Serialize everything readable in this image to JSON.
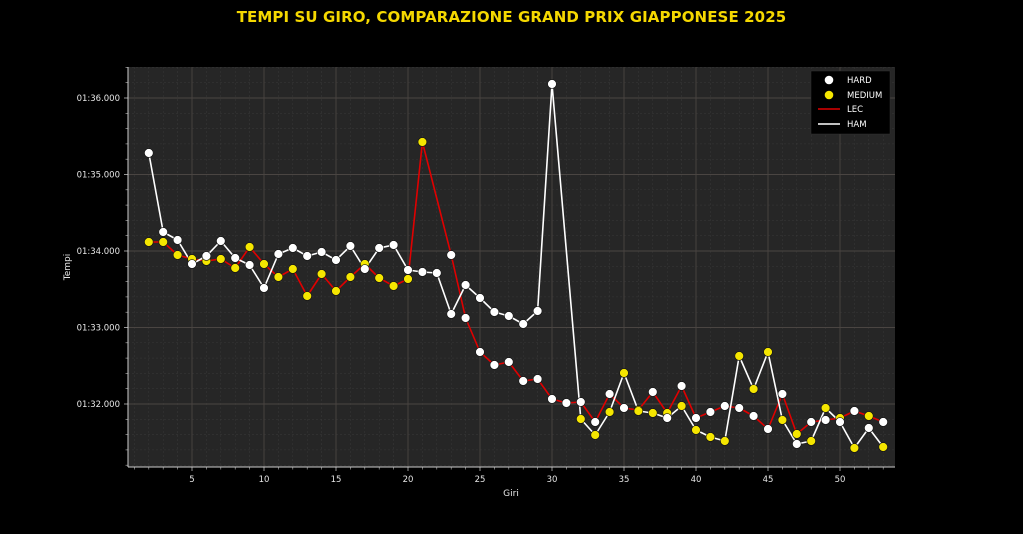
{
  "title": "TEMPI SU GIRO, COMPARAZIONE GRAND PRIX GIAPPONESE 2025",
  "colors": {
    "title": "#f5d800",
    "background": "#000000",
    "plot_background": "#262626",
    "hard": "#ffffff",
    "medium": "#f5e600",
    "lec_line": "#e00000",
    "ham_line": "#ffffff"
  },
  "legend": {
    "items": [
      {
        "label": "HARD",
        "type": "marker",
        "color": "#ffffff"
      },
      {
        "label": "MEDIUM",
        "type": "marker",
        "color": "#f5e600"
      },
      {
        "label": "LEC",
        "type": "line",
        "color": "#e00000"
      },
      {
        "label": "HAM",
        "type": "line",
        "color": "#ffffff"
      }
    ]
  },
  "chart_data": {
    "type": "line",
    "title": "TEMPI SU GIRO, COMPARAZIONE GRAND PRIX GIAPPONESE 2025",
    "xlabel": "Giri",
    "ylabel": "Tempi",
    "xticks": [
      5,
      10,
      15,
      20,
      25,
      30,
      35,
      40,
      45,
      50
    ],
    "yticks": [
      "01:32.000",
      "01:33.000",
      "01:34.000",
      "01:35.000",
      "01:36.000"
    ],
    "xlim": [
      0.5,
      54
    ],
    "ylim_seconds": [
      91.2,
      96.4
    ],
    "grid": true,
    "legend_position": "upper right",
    "marker_color_meaning": {
      "H": "HARD",
      "M": "MEDIUM"
    },
    "series": [
      {
        "name": "LEC",
        "color": "#e00000",
        "laps": [
          2,
          3,
          4,
          5,
          6,
          7,
          8,
          9,
          10,
          11,
          12,
          13,
          14,
          15,
          16,
          17,
          18,
          19,
          20,
          21,
          23,
          24,
          25,
          26,
          27,
          28,
          29,
          30,
          31,
          32,
          33,
          34,
          35,
          36,
          37,
          38,
          39,
          40,
          41,
          42,
          43,
          44,
          45,
          46,
          47,
          48,
          49,
          50,
          51,
          52,
          53
        ],
        "times_s": [
          94.118,
          94.118,
          93.948,
          93.895,
          93.869,
          93.895,
          93.778,
          94.052,
          93.83,
          93.66,
          93.765,
          93.412,
          93.699,
          93.477,
          93.66,
          93.83,
          93.647,
          93.542,
          93.634,
          95.425,
          93.948,
          93.124,
          92.68,
          92.51,
          92.549,
          92.301,
          92.327,
          92.065,
          92.013,
          92.026,
          91.765,
          92.131,
          91.948,
          91.922,
          92.157,
          91.882,
          92.235,
          91.817,
          91.895,
          91.974,
          91.948,
          91.843,
          91.673,
          92.131,
          91.608,
          91.765,
          91.791,
          91.817,
          91.908,
          91.843,
          91.765
        ],
        "compounds": [
          "M",
          "M",
          "M",
          "M",
          "M",
          "M",
          "M",
          "M",
          "M",
          "M",
          "M",
          "M",
          "M",
          "M",
          "M",
          "M",
          "M",
          "M",
          "M",
          "M",
          "H",
          "H",
          "H",
          "H",
          "H",
          "H",
          "H",
          "H",
          "H",
          "H",
          "H",
          "H",
          "H",
          "M",
          "H",
          "M",
          "H",
          "H",
          "H",
          "H",
          "H",
          "H",
          "H",
          "H",
          "M",
          "H",
          "H",
          "M",
          "H",
          "M",
          "H"
        ]
      },
      {
        "name": "HAM",
        "color": "#ffffff",
        "laps": [
          2,
          3,
          4,
          5,
          6,
          7,
          8,
          9,
          10,
          11,
          12,
          13,
          14,
          15,
          16,
          17,
          18,
          19,
          20,
          21,
          22,
          23,
          24,
          25,
          26,
          27,
          28,
          29,
          30,
          32,
          33,
          34,
          35,
          36,
          37,
          38,
          39,
          40,
          41,
          42,
          43,
          44,
          45,
          46,
          47,
          48,
          49,
          50,
          51,
          52,
          53
        ],
        "times_s": [
          95.281,
          94.248,
          94.144,
          93.83,
          93.935,
          94.131,
          93.908,
          93.817,
          93.516,
          93.961,
          94.039,
          93.935,
          93.987,
          93.882,
          94.065,
          93.765,
          94.039,
          94.078,
          93.752,
          93.725,
          93.712,
          93.176,
          93.556,
          93.386,
          93.203,
          93.15,
          93.046,
          93.216,
          96.183,
          91.804,
          91.595,
          91.895,
          92.405,
          91.908,
          91.882,
          91.817,
          91.974,
          91.66,
          91.569,
          91.516,
          92.627,
          92.196,
          92.68,
          91.791,
          91.477,
          91.516,
          91.948,
          91.765,
          91.425,
          91.686,
          91.438
        ],
        "compounds": [
          "H",
          "H",
          "H",
          "H",
          "H",
          "H",
          "H",
          "H",
          "H",
          "H",
          "H",
          "H",
          "H",
          "H",
          "H",
          "H",
          "H",
          "H",
          "H",
          "H",
          "H",
          "H",
          "H",
          "H",
          "H",
          "H",
          "H",
          "H",
          "H",
          "M",
          "M",
          "M",
          "M",
          "M",
          "M",
          "H",
          "M",
          "M",
          "M",
          "M",
          "M",
          "M",
          "M",
          "M",
          "H",
          "M",
          "M",
          "H",
          "M",
          "H",
          "M"
        ]
      }
    ]
  }
}
